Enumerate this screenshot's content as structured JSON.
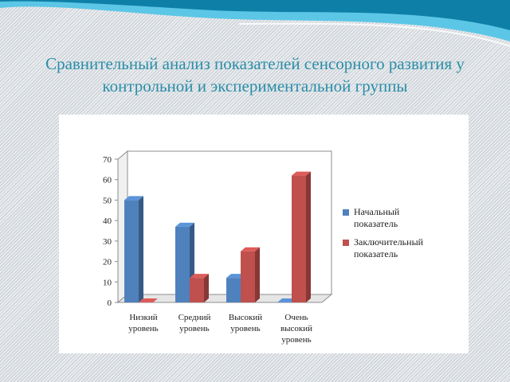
{
  "slide": {
    "title": "Сравнительный анализ показателей сенсорного развития у контрольной  и экспериментальной группы"
  },
  "colors": {
    "series_initial": "#4f81bd",
    "series_final": "#c0504d",
    "title": "#2b8ea8",
    "wave_dark": "#0e7fa6",
    "wave_light": "#5cc6e6"
  },
  "chart_data": {
    "type": "bar",
    "title": "",
    "xlabel": "",
    "ylabel": "",
    "ylim": [
      0,
      70
    ],
    "yticks": [
      0,
      10,
      20,
      30,
      40,
      50,
      60,
      70
    ],
    "grid": false,
    "three_d": true,
    "legend_position": "right",
    "categories": [
      [
        "Низкий",
        "уровень"
      ],
      [
        "Средний",
        "уровень"
      ],
      [
        "Высокий",
        "уровень"
      ],
      [
        "Очень",
        "высокий",
        "уровень"
      ]
    ],
    "series": [
      {
        "name": "Начальный показатель",
        "legend_lines": [
          "Начальный",
          "показатель"
        ],
        "color": "#4f81bd",
        "values": [
          50,
          37,
          12,
          0
        ]
      },
      {
        "name": "Заключительный показатель",
        "legend_lines": [
          "Заключительный",
          "показатель"
        ],
        "color": "#c0504d",
        "values": [
          0,
          12,
          25,
          62
        ]
      }
    ]
  }
}
